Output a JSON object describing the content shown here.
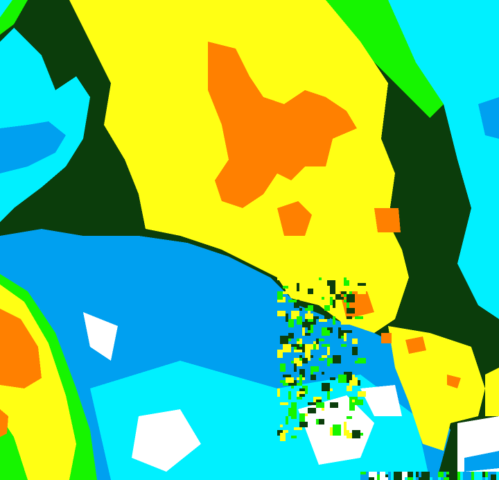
{
  "map": {
    "palette": {
      "dark_green": "#0b3d0b",
      "green": "#16f500",
      "yellow": "#ffff14",
      "orange": "#ff8000",
      "cyan": "#00f0ff",
      "blue": "#00a0f0",
      "white": "#ffffff"
    }
  }
}
